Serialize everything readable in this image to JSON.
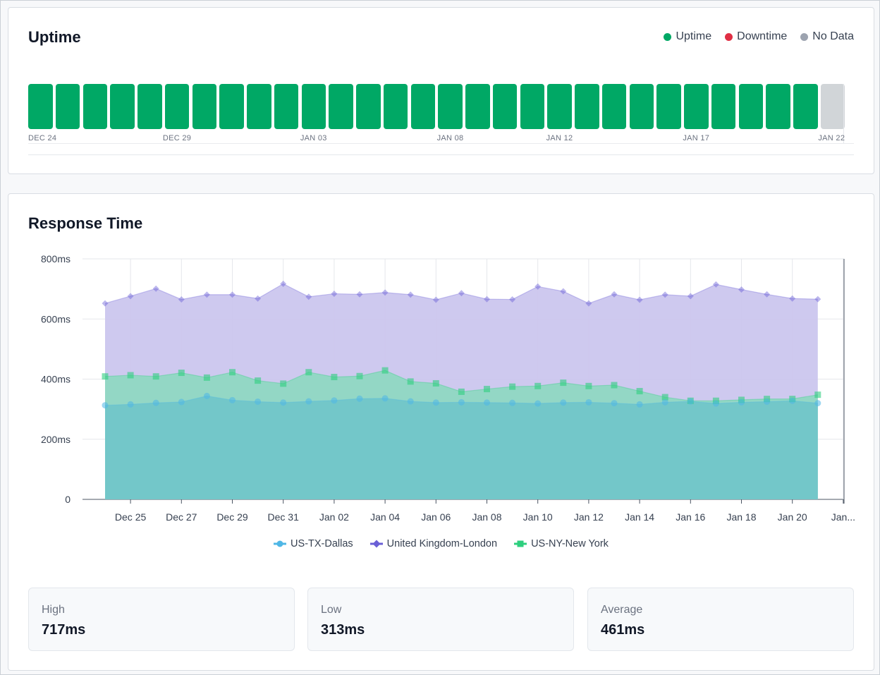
{
  "uptime": {
    "title": "Uptime",
    "legend": [
      {
        "label": "Uptime",
        "color": "#00a865"
      },
      {
        "label": "Downtime",
        "color": "#e02f44"
      },
      {
        "label": "No Data",
        "color": "#9ca3af"
      }
    ],
    "days": [
      "up",
      "up",
      "up",
      "up",
      "up",
      "up",
      "up",
      "up",
      "up",
      "up",
      "up",
      "up",
      "up",
      "up",
      "up",
      "up",
      "up",
      "up",
      "up",
      "up",
      "up",
      "up",
      "up",
      "up",
      "up",
      "up",
      "up",
      "up",
      "up",
      "nodata"
    ],
    "colors": {
      "up": "#00a865",
      "down": "#e02f44",
      "nodata": "#d1d5d8"
    },
    "tick_labels": [
      {
        "label": "DEC 24",
        "day": 0
      },
      {
        "label": "DEC 29",
        "day": 5
      },
      {
        "label": "JAN 03",
        "day": 10
      },
      {
        "label": "JAN 08",
        "day": 15
      },
      {
        "label": "JAN 12",
        "day": 19
      },
      {
        "label": "JAN 17",
        "day": 24
      },
      {
        "label": "JAN 22",
        "day": 29
      }
    ]
  },
  "response": {
    "title": "Response Time",
    "stats": [
      {
        "label": "High",
        "value": "717ms"
      },
      {
        "label": "Low",
        "value": "313ms"
      },
      {
        "label": "Average",
        "value": "461ms"
      }
    ]
  },
  "chart_data": {
    "type": "area",
    "title": "Response Time",
    "xlabel": "",
    "ylabel": "",
    "ylim": [
      0,
      800
    ],
    "yticks": [
      0,
      200,
      400,
      600,
      800
    ],
    "ytick_labels": [
      "0",
      "200ms",
      "400ms",
      "600ms",
      "800ms"
    ],
    "xtick_labels": [
      "Dec 25",
      "Dec 27",
      "Dec 29",
      "Dec 31",
      "Jan 02",
      "Jan 04",
      "Jan 06",
      "Jan 08",
      "Jan 10",
      "Jan 12",
      "Jan 14",
      "Jan 16",
      "Jan 18",
      "Jan 20",
      "Jan..."
    ],
    "x": [
      "Dec 24",
      "Dec 25",
      "Dec 26",
      "Dec 27",
      "Dec 28",
      "Dec 29",
      "Dec 30",
      "Dec 31",
      "Jan 01",
      "Jan 02",
      "Jan 03",
      "Jan 04",
      "Jan 05",
      "Jan 06",
      "Jan 07",
      "Jan 08",
      "Jan 09",
      "Jan 10",
      "Jan 11",
      "Jan 12",
      "Jan 13",
      "Jan 14",
      "Jan 15",
      "Jan 16",
      "Jan 17",
      "Jan 18",
      "Jan 19",
      "Jan 20",
      "Jan 21"
    ],
    "grid": true,
    "legend_position": "bottom",
    "series": [
      {
        "name": "United Kingdom-London",
        "color": "#6a5fd6",
        "fill": "#cbc6ee",
        "marker": "diamond",
        "values": [
          652,
          676,
          701,
          665,
          681,
          681,
          668,
          717,
          674,
          684,
          682,
          688,
          681,
          664,
          686,
          666,
          665,
          708,
          692,
          652,
          682,
          664,
          681,
          676,
          715,
          698,
          682,
          668,
          666
        ]
      },
      {
        "name": "US-NY-New York",
        "color": "#2ecf7e",
        "fill": "#8fd8c2",
        "marker": "square",
        "values": [
          409,
          413,
          409,
          421,
          405,
          423,
          395,
          385,
          423,
          407,
          410,
          429,
          392,
          386,
          358,
          367,
          375,
          377,
          388,
          377,
          380,
          360,
          340,
          328,
          328,
          331,
          334,
          334,
          348
        ]
      },
      {
        "name": "US-TX-Dallas",
        "color": "#4fb7e6",
        "fill": "#70c6c9",
        "marker": "circle",
        "values": [
          313,
          316,
          321,
          324,
          344,
          330,
          325,
          322,
          326,
          329,
          335,
          336,
          326,
          322,
          323,
          322,
          321,
          319,
          322,
          323,
          320,
          316,
          323,
          326,
          319,
          323,
          325,
          328,
          320
        ]
      }
    ]
  }
}
